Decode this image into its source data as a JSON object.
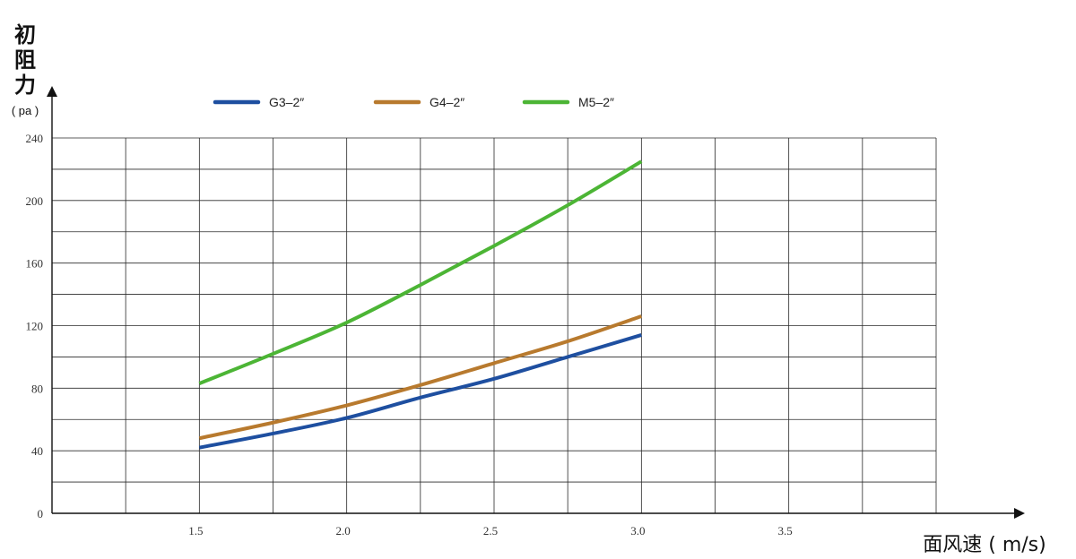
{
  "chart_data": {
    "type": "line",
    "ylabel_chars": [
      "初",
      "阻",
      "力"
    ],
    "ylabel_unit": "( pa )",
    "xlabel": "面风速 ( m/s)",
    "y_ticks": [
      "0",
      "40",
      "80",
      "120",
      "160",
      "200",
      "240"
    ],
    "x_ticks": [
      "1.5",
      "2.0",
      "2.5",
      "3.0",
      "3.5"
    ],
    "xlim": [
      1.0,
      4.0
    ],
    "ylim": [
      0,
      240
    ],
    "grid": true,
    "legend_position": "top",
    "series": [
      {
        "name": "G3–2″",
        "color": "#1e4fa0",
        "x": [
          1.5,
          1.75,
          2.0,
          2.25,
          2.5,
          2.75,
          3.0
        ],
        "y": [
          42,
          51,
          61,
          74,
          86,
          100,
          114
        ]
      },
      {
        "name": "G4–2″",
        "color": "#b87a2e",
        "x": [
          1.5,
          1.75,
          2.0,
          2.25,
          2.5,
          2.75,
          3.0
        ],
        "y": [
          48,
          58,
          69,
          82,
          96,
          110,
          126
        ]
      },
      {
        "name": "M5–2″",
        "color": "#4cb535",
        "x": [
          1.5,
          1.75,
          2.0,
          2.25,
          2.5,
          2.75,
          3.0
        ],
        "y": [
          83,
          102,
          122,
          146,
          171,
          197,
          225
        ]
      }
    ]
  }
}
